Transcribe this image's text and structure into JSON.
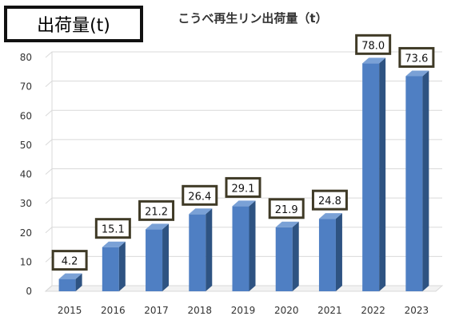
{
  "badge": {
    "label": "出荷量(t)"
  },
  "chart_data": {
    "type": "bar",
    "title": "こうべ再生リン出荷量（t）",
    "categories": [
      "2015",
      "2016",
      "2017",
      "2018",
      "2019",
      "2020",
      "2021",
      "2022",
      "2023"
    ],
    "values": [
      4.2,
      15.1,
      21.2,
      26.4,
      29.1,
      21.9,
      24.8,
      78.0,
      73.6
    ],
    "value_labels": [
      "4.2",
      "15.1",
      "21.2",
      "26.4",
      "29.1",
      "21.9",
      "24.8",
      "78.0",
      "73.6"
    ],
    "yticks": [
      "0",
      "10",
      "20",
      "30",
      "40",
      "50",
      "60",
      "70",
      "80"
    ],
    "ylim": [
      0,
      80
    ],
    "xlabel": "",
    "ylabel": "",
    "grid": true,
    "style": "3d-column",
    "colors": {
      "bar": "#4f7fc3",
      "bar_side": "#2e5382",
      "bar_top": "#7aa1d6",
      "label_border": "#3f3a26"
    }
  }
}
